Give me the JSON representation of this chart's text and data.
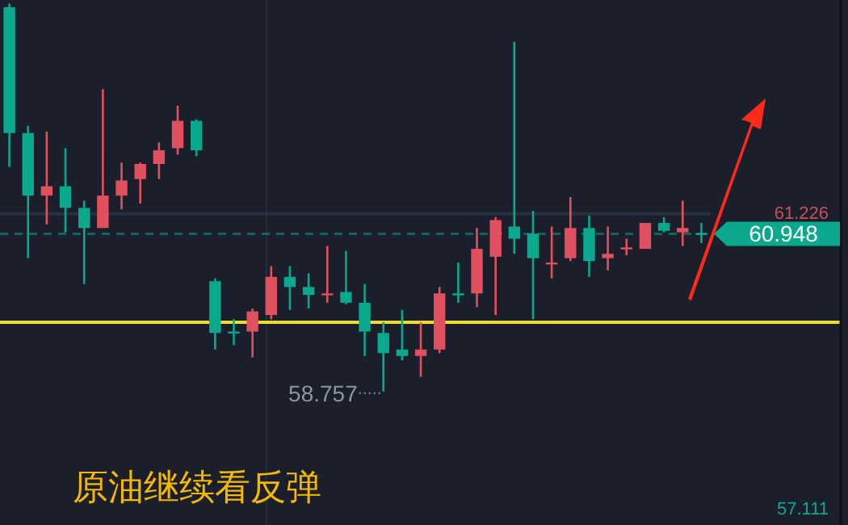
{
  "chart_data": {
    "type": "candlestick",
    "title": "原油继续看反弹",
    "categories": [
      null,
      null,
      null,
      null,
      null,
      null,
      null,
      null,
      null,
      null,
      null,
      null,
      null,
      null,
      null,
      null,
      null,
      null,
      null,
      null,
      null,
      null,
      null,
      null,
      null,
      null,
      null,
      null,
      null,
      null,
      null,
      null,
      null,
      null,
      null,
      null,
      null,
      null
    ],
    "ohlc": [
      [
        64.1,
        64.15,
        61.88,
        62.35
      ],
      [
        62.35,
        62.45,
        60.61,
        61.48
      ],
      [
        61.48,
        62.37,
        61.08,
        61.61
      ],
      [
        61.61,
        62.14,
        60.97,
        61.31
      ],
      [
        61.31,
        61.41,
        60.25,
        61.03
      ],
      [
        61.03,
        62.96,
        61.03,
        61.48
      ],
      [
        61.48,
        61.94,
        61.29,
        61.69
      ],
      [
        61.71,
        61.94,
        61.37,
        61.92
      ],
      [
        61.92,
        62.22,
        61.71,
        62.11
      ],
      [
        62.14,
        62.73,
        62.05,
        62.52
      ],
      [
        62.52,
        62.54,
        62.03,
        62.11
      ],
      [
        60.29,
        60.33,
        59.34,
        59.57
      ],
      [
        59.59,
        59.76,
        59.4,
        59.57
      ],
      [
        59.59,
        59.91,
        59.23,
        59.87
      ],
      [
        59.82,
        60.5,
        59.76,
        60.35
      ],
      [
        60.35,
        60.5,
        59.89,
        60.21
      ],
      [
        60.21,
        60.4,
        59.91,
        60.1
      ],
      [
        60.1,
        60.78,
        59.99,
        60.12
      ],
      [
        60.14,
        60.71,
        59.97,
        59.99
      ],
      [
        59.99,
        60.25,
        59.25,
        59.59
      ],
      [
        59.57,
        59.72,
        58.757,
        59.29
      ],
      [
        59.34,
        59.89,
        59.19,
        59.25
      ],
      [
        59.25,
        59.72,
        58.96,
        59.34
      ],
      [
        59.34,
        60.21,
        59.29,
        60.12
      ],
      [
        60.12,
        60.55,
        59.99,
        60.1
      ],
      [
        60.12,
        61.03,
        59.93,
        60.74
      ],
      [
        60.63,
        61.18,
        59.82,
        61.14
      ],
      [
        61.05,
        63.62,
        60.67,
        60.88
      ],
      [
        60.95,
        61.27,
        59.76,
        60.61
      ],
      [
        60.54,
        61.05,
        60.33,
        60.55
      ],
      [
        60.61,
        61.46,
        60.57,
        61.03
      ],
      [
        61.03,
        61.2,
        60.35,
        60.57
      ],
      [
        60.61,
        61.05,
        60.44,
        60.67
      ],
      [
        60.75,
        60.88,
        60.65,
        60.76
      ],
      [
        60.74,
        61.1,
        60.74,
        61.1
      ],
      [
        61.1,
        61.18,
        60.97,
        60.99
      ],
      [
        60.97,
        61.41,
        60.78,
        61.03
      ],
      [
        60.96,
        61.1,
        60.82,
        60.948
      ]
    ],
    "colors": [
      "#0aa88c",
      "#0aa88c",
      "#e0505e",
      "#0aa88c",
      "#0aa88c",
      "#e0505e",
      "#e0505e",
      "#e0505e",
      "#e0505e",
      "#e0505e",
      "#0aa88c",
      "#0aa88c",
      "#0aa88c",
      "#e0505e",
      "#e0505e",
      "#0aa88c",
      "#0aa88c",
      "#e0505e",
      "#0aa88c",
      "#0aa88c",
      "#0aa88c",
      "#0aa88c",
      "#e0505e",
      "#e0505e",
      "#0aa88c",
      "#e0505e",
      "#e0505e",
      "#0aa88c",
      "#0aa88c",
      "#e0505e",
      "#e0505e",
      "#0aa88c",
      "#e0505e",
      "#e0505e",
      "#e0505e",
      "#0aa88c",
      "#e0505e",
      "#0aa88c"
    ],
    "ylim": [
      56.9,
      64.2
    ],
    "yticks": [
      61.226,
      57.111
    ],
    "ref_lines": [
      {
        "axis": "y",
        "value": 61.226,
        "color": "#2a3040",
        "line_style": "solid"
      },
      {
        "axis": "y",
        "value": 60.948,
        "label": "60.948",
        "color": "#0aa88c",
        "line_style": "dashed"
      },
      {
        "axis": "y",
        "value": 59.72,
        "color": "#f0e020",
        "line_style": "solid"
      }
    ],
    "annotations": [
      "58.757"
    ]
  }
}
